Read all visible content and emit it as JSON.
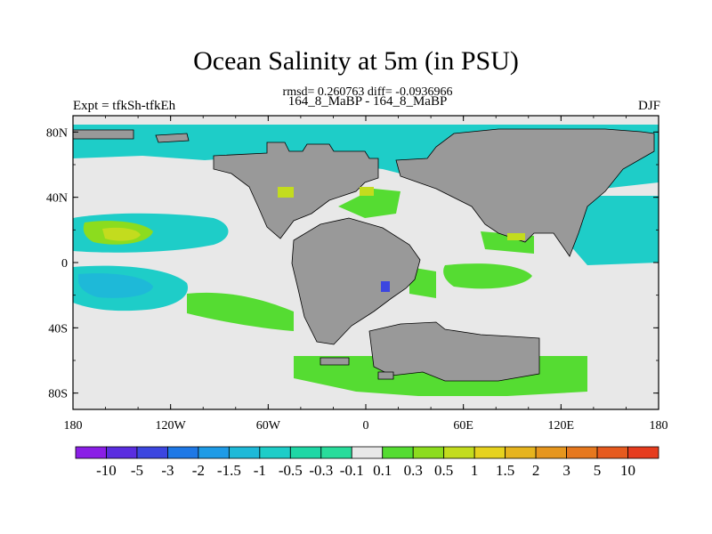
{
  "chart_data": {
    "type": "heatmap",
    "title": "Ocean Salinity at 5m (in PSU)",
    "stats": "rmsd= 0.260763 diff= -0.0936966",
    "left_label": "Expt = tfkSh-tfkEh",
    "center_label": "164_8_MaBP - 164_8_MaBP",
    "right_label": "DJF",
    "x_axis": {
      "range": [
        -180,
        180
      ],
      "ticks": [
        "180",
        "120W",
        "60W",
        "0",
        "60E",
        "120E",
        "180"
      ]
    },
    "y_axis": {
      "range": [
        -90,
        90
      ],
      "ticks": [
        "80N",
        "40N",
        "0",
        "40S",
        "80S"
      ]
    },
    "colorbar": {
      "levels": [
        "-10",
        "-5",
        "-3",
        "-2",
        "-1.5",
        "-1",
        "-0.5",
        "-0.3",
        "-0.1",
        "0.1",
        "0.3",
        "0.5",
        "1",
        "1.5",
        "2",
        "3",
        "5",
        "10"
      ],
      "colors": [
        "#8a1ee6",
        "#5a2de0",
        "#3c46e0",
        "#1e78e6",
        "#1e9be6",
        "#1eb9d8",
        "#1ecdc8",
        "#1ed7a5",
        "#28dc9b",
        "#e8e8e8",
        "#55dc32",
        "#8cdc1e",
        "#c3dc1e",
        "#e6d21e",
        "#e6b41e",
        "#e6961e",
        "#e6781e",
        "#e65a1e",
        "#e63c1e"
      ]
    },
    "land_color": "#999999"
  }
}
